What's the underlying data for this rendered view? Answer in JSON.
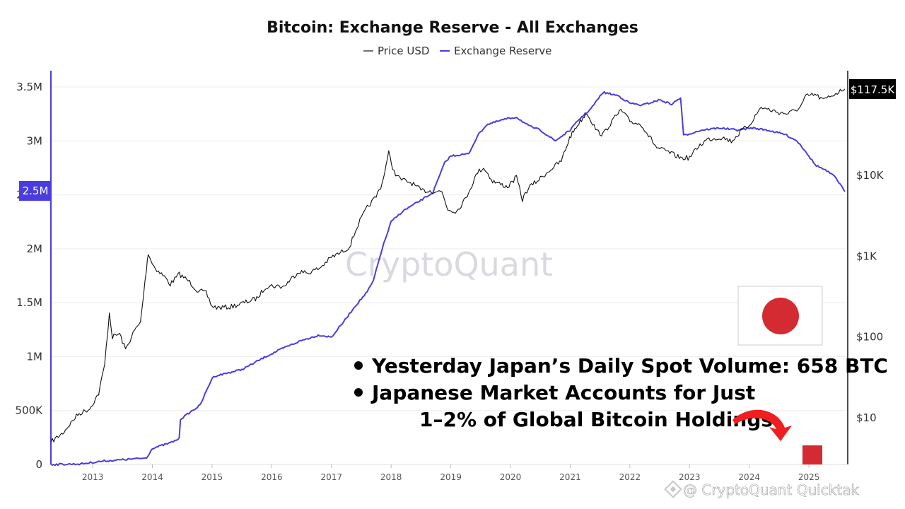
{
  "colors": {
    "price": "#111111",
    "reserve": "#4a3de0",
    "grid": "#eeeeee",
    "flag_red": "#d42a32",
    "arrow_red": "#f01e1e"
  },
  "legend": {
    "price_label": "Price USD",
    "reserve_label": "Exchange Reserve"
  },
  "badges": {
    "left": "2.5M",
    "right": "$117.5K"
  },
  "watermark": "CryptoQuant",
  "annotation": {
    "line1": "Yesterday Japan’s Daily Spot Volume: 658 BTC",
    "line2": "Japanese Market Accounts for Just",
    "line3": "1–2% of Global Bitcoin Holdings"
  },
  "footer": "@ CryptoQuant Quicktak",
  "icons": [
    "japan-flag-icon",
    "curved-arrow-icon",
    "red-square-icon",
    "binance-logo-icon"
  ],
  "chart_data": {
    "type": "line",
    "title": "Bitcoin: Exchange Reserve - All Exchanges",
    "x_range": [
      2012.3,
      2025.65
    ],
    "x_ticks": [
      "2013",
      "2014",
      "2015",
      "2016",
      "2017",
      "2018",
      "2019",
      "2020",
      "2021",
      "2022",
      "2023",
      "2024",
      "2025"
    ],
    "y_left": {
      "min": 0,
      "max": 3500000,
      "ticks": [
        0,
        500000,
        1000000,
        1500000,
        2000000,
        2500000,
        3000000,
        3500000
      ],
      "tick_labels": [
        "0",
        "500K",
        "1M",
        "1.5M",
        "2M",
        "2.5M",
        "3M",
        "3.5M"
      ]
    },
    "y_right": {
      "scale": "log",
      "ticks": [
        10,
        100,
        1000,
        10000
      ],
      "tick_labels": [
        "$10",
        "$100",
        "$1K",
        "$10K"
      ]
    },
    "grid": true,
    "legend_position": "top-center",
    "series": [
      {
        "name": "Price USD",
        "axis": "right",
        "points": [
          [
            2012.3,
            5
          ],
          [
            2012.5,
            6.5
          ],
          [
            2012.75,
            11
          ],
          [
            2012.95,
            13
          ],
          [
            2013.1,
            20
          ],
          [
            2013.2,
            45
          ],
          [
            2013.28,
            200
          ],
          [
            2013.33,
            100
          ],
          [
            2013.45,
            110
          ],
          [
            2013.55,
            70
          ],
          [
            2013.7,
            120
          ],
          [
            2013.8,
            150
          ],
          [
            2013.9,
            700
          ],
          [
            2013.93,
            1100
          ],
          [
            2014.0,
            800
          ],
          [
            2014.1,
            650
          ],
          [
            2014.2,
            560
          ],
          [
            2014.3,
            450
          ],
          [
            2014.45,
            600
          ],
          [
            2014.6,
            500
          ],
          [
            2014.75,
            380
          ],
          [
            2014.9,
            350
          ],
          [
            2015.0,
            240
          ],
          [
            2015.1,
            230
          ],
          [
            2015.3,
            235
          ],
          [
            2015.5,
            260
          ],
          [
            2015.75,
            300
          ],
          [
            2015.9,
            420
          ],
          [
            2016.0,
            430
          ],
          [
            2016.2,
            420
          ],
          [
            2016.45,
            650
          ],
          [
            2016.6,
            620
          ],
          [
            2016.8,
            710
          ],
          [
            2017.0,
            970
          ],
          [
            2017.15,
            1100
          ],
          [
            2017.3,
            1300
          ],
          [
            2017.45,
            2500
          ],
          [
            2017.6,
            4000
          ],
          [
            2017.75,
            5500
          ],
          [
            2017.85,
            8000
          ],
          [
            2017.96,
            19000
          ],
          [
            2018.05,
            11000
          ],
          [
            2018.15,
            9000
          ],
          [
            2018.35,
            8000
          ],
          [
            2018.5,
            6500
          ],
          [
            2018.7,
            6400
          ],
          [
            2018.85,
            6300
          ],
          [
            2018.95,
            3800
          ],
          [
            2019.1,
            3600
          ],
          [
            2019.25,
            5200
          ],
          [
            2019.45,
            11000
          ],
          [
            2019.55,
            12500
          ],
          [
            2019.7,
            8500
          ],
          [
            2019.95,
            7200
          ],
          [
            2020.1,
            9500
          ],
          [
            2020.2,
            5000
          ],
          [
            2020.3,
            7000
          ],
          [
            2020.5,
            9200
          ],
          [
            2020.65,
            11500
          ],
          [
            2020.85,
            15000
          ],
          [
            2020.99,
            29000
          ],
          [
            2021.1,
            40000
          ],
          [
            2021.28,
            60000
          ],
          [
            2021.45,
            35000
          ],
          [
            2021.55,
            32000
          ],
          [
            2021.7,
            47000
          ],
          [
            2021.85,
            64000
          ],
          [
            2022.0,
            47000
          ],
          [
            2022.2,
            42000
          ],
          [
            2022.45,
            22000
          ],
          [
            2022.6,
            20000
          ],
          [
            2022.85,
            16500
          ],
          [
            2023.0,
            16500
          ],
          [
            2023.15,
            23000
          ],
          [
            2023.3,
            28000
          ],
          [
            2023.55,
            29500
          ],
          [
            2023.7,
            26500
          ],
          [
            2023.9,
            37000
          ],
          [
            2024.0,
            42000
          ],
          [
            2024.2,
            70000
          ],
          [
            2024.3,
            66000
          ],
          [
            2024.5,
            60000
          ],
          [
            2024.65,
            58000
          ],
          [
            2024.85,
            69000
          ],
          [
            2024.95,
            95000
          ],
          [
            2025.1,
            100000
          ],
          [
            2025.25,
            85000
          ],
          [
            2025.35,
            95000
          ],
          [
            2025.5,
            108000
          ],
          [
            2025.6,
            117500
          ]
        ]
      },
      {
        "name": "Exchange Reserve",
        "axis": "left",
        "points": [
          [
            2012.3,
            0
          ],
          [
            2012.8,
            5000
          ],
          [
            2013.15,
            30000
          ],
          [
            2013.9,
            60000
          ],
          [
            2014.0,
            150000
          ],
          [
            2014.3,
            200000
          ],
          [
            2014.45,
            240000
          ],
          [
            2014.47,
            420000
          ],
          [
            2014.8,
            550000
          ],
          [
            2015.0,
            800000
          ],
          [
            2015.05,
            820000
          ],
          [
            2015.5,
            880000
          ],
          [
            2015.9,
            1000000
          ],
          [
            2016.2,
            1080000
          ],
          [
            2016.5,
            1150000
          ],
          [
            2016.8,
            1200000
          ],
          [
            2017.0,
            1180000
          ],
          [
            2017.2,
            1320000
          ],
          [
            2017.4,
            1470000
          ],
          [
            2017.6,
            1600000
          ],
          [
            2017.7,
            1700000
          ],
          [
            2017.85,
            2000000
          ],
          [
            2018.0,
            2250000
          ],
          [
            2018.2,
            2350000
          ],
          [
            2018.5,
            2450000
          ],
          [
            2018.7,
            2520000
          ],
          [
            2018.9,
            2800000
          ],
          [
            2019.0,
            2860000
          ],
          [
            2019.3,
            2880000
          ],
          [
            2019.45,
            3050000
          ],
          [
            2019.6,
            3150000
          ],
          [
            2019.9,
            3200000
          ],
          [
            2020.1,
            3220000
          ],
          [
            2020.3,
            3140000
          ],
          [
            2020.5,
            3100000
          ],
          [
            2020.75,
            3000000
          ],
          [
            2021.0,
            3100000
          ],
          [
            2021.15,
            3200000
          ],
          [
            2021.35,
            3300000
          ],
          [
            2021.55,
            3450000
          ],
          [
            2021.8,
            3420000
          ],
          [
            2022.0,
            3350000
          ],
          [
            2022.2,
            3330000
          ],
          [
            2022.5,
            3380000
          ],
          [
            2022.7,
            3340000
          ],
          [
            2022.85,
            3400000
          ],
          [
            2022.9,
            3050000
          ],
          [
            2023.2,
            3100000
          ],
          [
            2023.5,
            3120000
          ],
          [
            2023.8,
            3100000
          ],
          [
            2024.05,
            3120000
          ],
          [
            2024.3,
            3100000
          ],
          [
            2024.6,
            3060000
          ],
          [
            2024.8,
            3000000
          ],
          [
            2024.95,
            2900000
          ],
          [
            2025.1,
            2780000
          ],
          [
            2025.3,
            2720000
          ],
          [
            2025.45,
            2660000
          ],
          [
            2025.6,
            2530000
          ]
        ]
      }
    ]
  }
}
